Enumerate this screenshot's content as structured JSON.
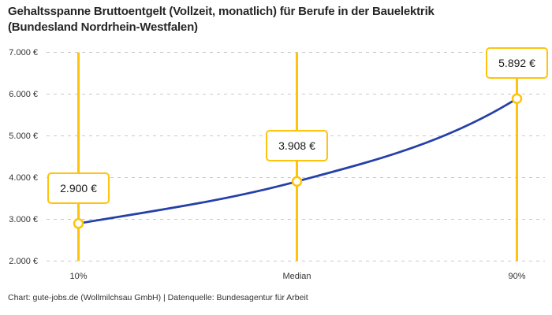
{
  "header": {
    "title_line1": "Gehaltsspanne Bruttoentgelt (Vollzeit, monatlich) für Berufe in der Bauelektrik",
    "title_line2": "(Bundesland Nordrhein-Westfalen)"
  },
  "footer": {
    "credit": "Chart: gute-jobs.de (Wollmilchsau GmbH) | Datenquelle: Bundesagentur für Arbeit"
  },
  "colors": {
    "accent_yellow": "#FFC30B",
    "line_blue": "#2540A8",
    "grid_gray": "#C9C9C9",
    "text_dark": "#262626",
    "text_axis": "#333333"
  },
  "chart_data": {
    "type": "line",
    "title": "Gehaltsspanne Bruttoentgelt (Vollzeit, monatlich) für Berufe in der Bauelektrik (Bundesland Nordrhein-Westfalen)",
    "categories": [
      "10%",
      "Median",
      "90%"
    ],
    "series": [
      {
        "name": "Bruttoentgelt (EUR, monatlich)",
        "values": [
          2900,
          3908,
          5892
        ]
      }
    ],
    "value_labels": [
      "2.900 €",
      "3.908 €",
      "5.892 €"
    ],
    "ylim": [
      2000,
      7000
    ],
    "ytick_step": 1000,
    "ytick_labels": [
      "2.000 €",
      "3.000 €",
      "4.000 €",
      "5.000 €",
      "6.000 €",
      "7.000 €"
    ],
    "grid": "horizontal-dashed",
    "legend": "none",
    "annotations": "yellow vertical marker line per category with value callout box above each data point"
  }
}
